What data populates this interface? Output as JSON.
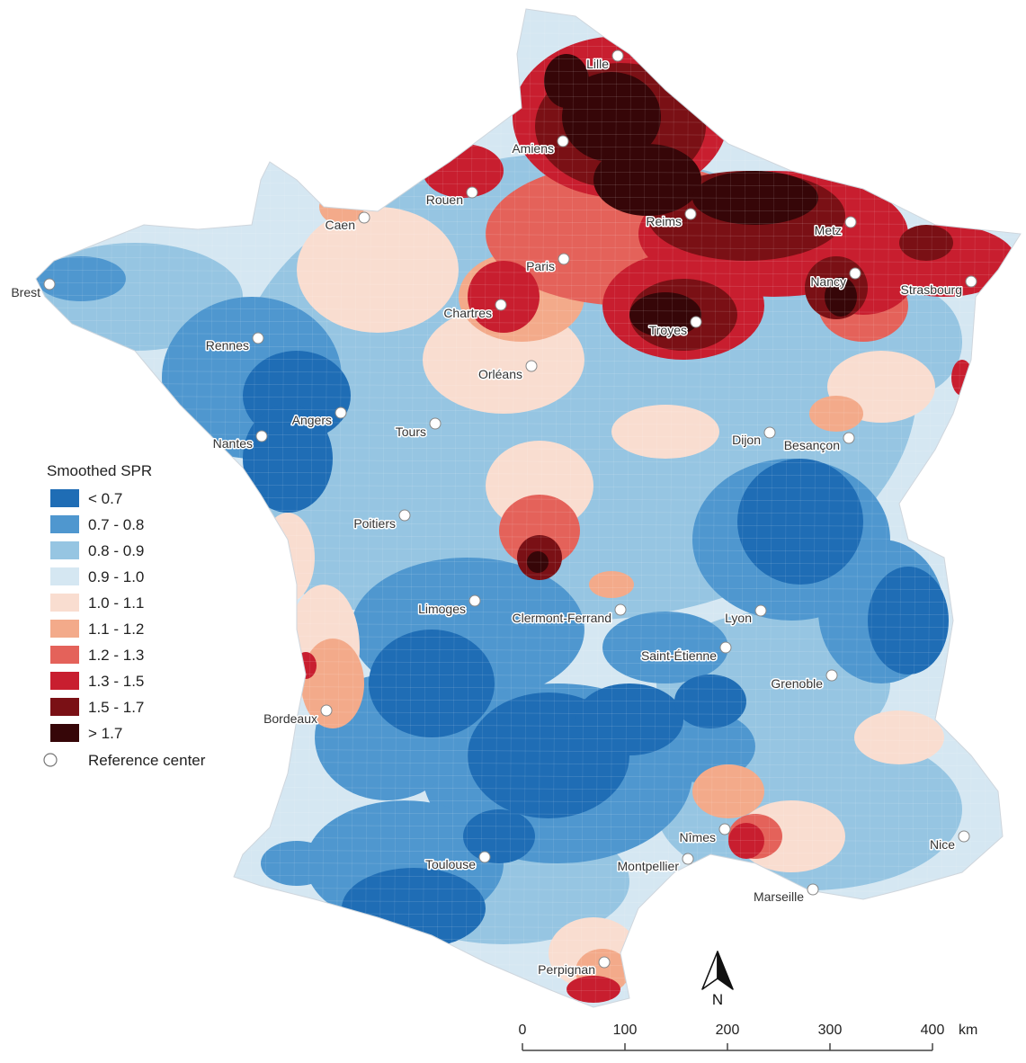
{
  "legend": {
    "title": "Smoothed SPR",
    "items": [
      {
        "label": "< 0.7",
        "color": "#1f6db5"
      },
      {
        "label": "0.7 - 0.8",
        "color": "#4f97cf"
      },
      {
        "label": "0.8 - 0.9",
        "color": "#96c5e2"
      },
      {
        "label": "0.9 - 1.0",
        "color": "#d5e7f2"
      },
      {
        "label": "1.0 - 1.1",
        "color": "#f9ddd0"
      },
      {
        "label": "1.1 - 1.2",
        "color": "#f3aa8a"
      },
      {
        "label": "1.2 - 1.3",
        "color": "#e4625a"
      },
      {
        "label": "1.3 - 1.5",
        "color": "#c81e2f"
      },
      {
        "label": "1.5 - 1.7",
        "color": "#7a1015"
      },
      {
        "label": "> 1.7",
        "color": "#360608"
      }
    ],
    "reference_label": "Reference center"
  },
  "cities": [
    "Lille",
    "Amiens",
    "Rouen",
    "Caen",
    "Reims",
    "Metz",
    "Paris",
    "Nancy",
    "Strasbourg",
    "Brest",
    "Chartres",
    "Rennes",
    "Troyes",
    "Orléans",
    "Angers",
    "Nantes",
    "Tours",
    "Dijon",
    "Besançon",
    "Poitiers",
    "Limoges",
    "Clermont-Ferrand",
    "Lyon",
    "Saint-Étienne",
    "Grenoble",
    "Bordeaux",
    "Nîmes",
    "Nice",
    "Toulouse",
    "Montpellier",
    "Marseille",
    "Perpignan"
  ],
  "north_label": "N",
  "scale": {
    "ticks": [
      "0",
      "100",
      "200",
      "300",
      "400"
    ],
    "unit": "km"
  },
  "colors": {
    "city_marker": "#ffffff",
    "city_marker_stroke": "#888888",
    "border": "#ffffff"
  }
}
